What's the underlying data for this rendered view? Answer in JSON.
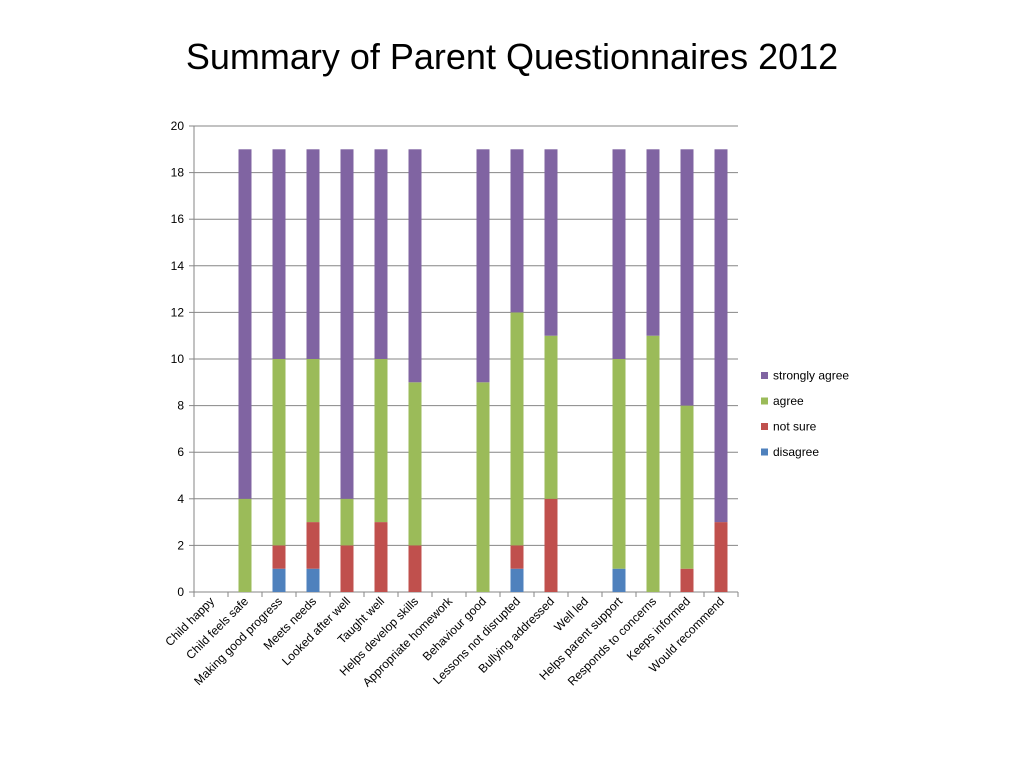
{
  "title": "Summary of Parent Questionnaires 2012",
  "chart_data": {
    "type": "bar",
    "stacked": true,
    "title": "Summary of Parent Questionnaires 2012",
    "categories": [
      "Child happy",
      "Child feels safe",
      "Making good progress",
      "Meets needs",
      "Looked after well",
      "Taught well",
      "Helps develop skills",
      "Appropriate homework",
      "Behaviour good",
      "Lessons not disrupted",
      "Bullying addressed",
      "Well led",
      "Helps parent support",
      "Responds to concerns",
      "Keeps informed",
      "Would recommend"
    ],
    "series": [
      {
        "name": "disagree",
        "color": "#4f81bd",
        "values": [
          0,
          0,
          1,
          1,
          0,
          0,
          0,
          0,
          0,
          1,
          0,
          0,
          1,
          0,
          0,
          0
        ]
      },
      {
        "name": "not sure",
        "color": "#c0504d",
        "values": [
          0,
          0,
          1,
          2,
          2,
          3,
          2,
          0,
          0,
          1,
          4,
          0,
          0,
          0,
          1,
          3
        ]
      },
      {
        "name": "agree",
        "color": "#9bbb59",
        "values": [
          0,
          4,
          8,
          7,
          2,
          7,
          7,
          0,
          9,
          10,
          7,
          0,
          9,
          11,
          7,
          0
        ]
      },
      {
        "name": "strongly agree",
        "color": "#8064a2",
        "values": [
          0,
          15,
          9,
          9,
          15,
          9,
          10,
          0,
          10,
          7,
          8,
          0,
          9,
          8,
          11,
          16
        ]
      }
    ],
    "ylim": [
      0,
      20
    ],
    "yticks": [
      0,
      2,
      4,
      6,
      8,
      10,
      12,
      14,
      16,
      18,
      20
    ],
    "grid": true,
    "legend_position": "right",
    "legend_order": [
      "strongly agree",
      "agree",
      "not sure",
      "disagree"
    ]
  }
}
